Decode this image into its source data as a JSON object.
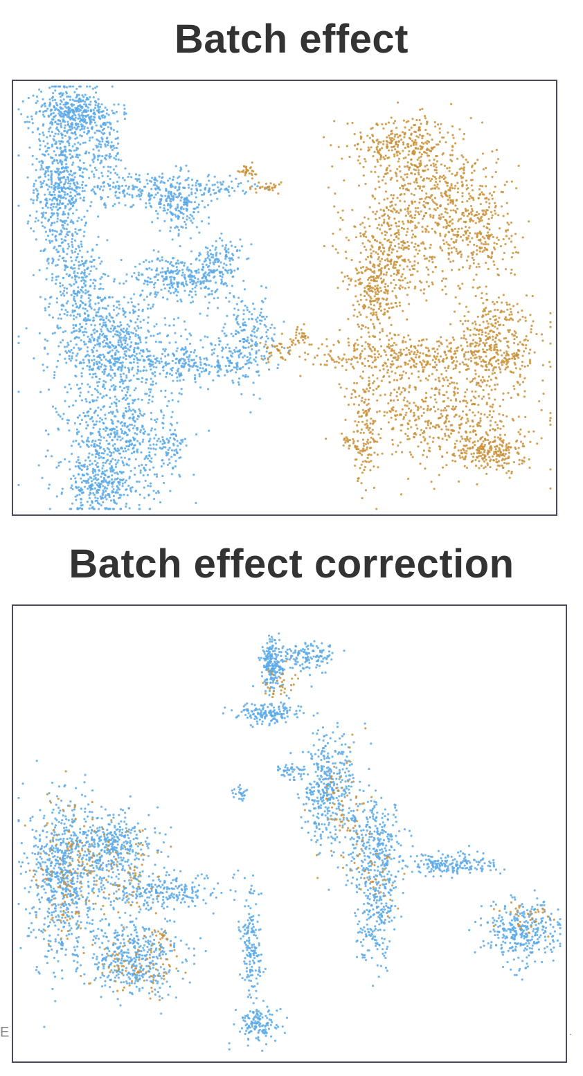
{
  "colors": {
    "batch_a": "#5aa9e6",
    "batch_b": "#c9923a",
    "frame": "#4a4a5e",
    "title": "#333333"
  },
  "edge_marks": {
    "left": "E",
    "right": "."
  },
  "chart_data": [
    {
      "type": "scatter",
      "title": "Batch effect",
      "xlabel": "",
      "ylabel": "",
      "grid": false,
      "xlim": [
        0,
        100
      ],
      "ylim": [
        0,
        100
      ],
      "series": [
        {
          "color": "#5aa9e6",
          "clusters": [
            {
              "x": 8,
              "y": 78,
              "sx": 2.5,
              "sy": 12,
              "n": 700
            },
            {
              "x": 11,
              "y": 94,
              "sx": 4,
              "sy": 2.5,
              "n": 280
            },
            {
              "x": 16,
              "y": 86,
              "sx": 2,
              "sy": 4,
              "n": 120
            },
            {
              "x": 22,
              "y": 76,
              "sx": 7,
              "sy": 2,
              "n": 220
            },
            {
              "x": 30,
              "y": 72,
              "sx": 2.5,
              "sy": 3.5,
              "n": 180
            },
            {
              "x": 38,
              "y": 76,
              "sx": 3,
              "sy": 1.2,
              "n": 60
            },
            {
              "x": 30,
              "y": 55,
              "sx": 4,
              "sy": 2.5,
              "n": 260
            },
            {
              "x": 38,
              "y": 58,
              "sx": 2,
              "sy": 4,
              "n": 130
            },
            {
              "x": 12,
              "y": 52,
              "sx": 3,
              "sy": 6,
              "n": 260
            },
            {
              "x": 18,
              "y": 38,
              "sx": 6,
              "sy": 6,
              "n": 620
            },
            {
              "x": 32,
              "y": 34,
              "sx": 6,
              "sy": 2,
              "n": 220
            },
            {
              "x": 43,
              "y": 40,
              "sx": 3,
              "sy": 5,
              "n": 220
            },
            {
              "x": 19,
              "y": 16,
              "sx": 5.5,
              "sy": 7,
              "n": 600
            },
            {
              "x": 15,
              "y": 5,
              "sx": 3,
              "sy": 3,
              "n": 240
            },
            {
              "x": 29,
              "y": 15,
              "sx": 1.5,
              "sy": 2,
              "n": 40
            }
          ]
        },
        {
          "color": "#c9923a",
          "clusters": [
            {
              "x": 72,
              "y": 87,
              "sx": 5,
              "sy": 3,
              "n": 250
            },
            {
              "x": 77,
              "y": 76,
              "sx": 6,
              "sy": 6,
              "n": 380
            },
            {
              "x": 86,
              "y": 66,
              "sx": 4,
              "sy": 7,
              "n": 300
            },
            {
              "x": 70,
              "y": 62,
              "sx": 4.5,
              "sy": 6,
              "n": 360
            },
            {
              "x": 67,
              "y": 50,
              "sx": 2.5,
              "sy": 5,
              "n": 200
            },
            {
              "x": 75,
              "y": 36,
              "sx": 10,
              "sy": 2.5,
              "n": 380
            },
            {
              "x": 90,
              "y": 40,
              "sx": 4,
              "sy": 6,
              "n": 320
            },
            {
              "x": 79,
              "y": 22,
              "sx": 8,
              "sy": 6,
              "n": 520
            },
            {
              "x": 89,
              "y": 14,
              "sx": 3,
              "sy": 2.5,
              "n": 220
            },
            {
              "x": 65,
              "y": 20,
              "sx": 1.2,
              "sy": 8,
              "n": 120
            },
            {
              "x": 43,
              "y": 80,
              "sx": 0.8,
              "sy": 0.8,
              "n": 30
            },
            {
              "x": 47,
              "y": 76,
              "sx": 1.5,
              "sy": 0.6,
              "n": 30
            },
            {
              "x": 53,
              "y": 41,
              "sx": 0.8,
              "sy": 1,
              "n": 30
            },
            {
              "x": 49,
              "y": 38,
              "sx": 2,
              "sy": 1.5,
              "n": 40
            },
            {
              "x": 62,
              "y": 16,
              "sx": 0.8,
              "sy": 0.8,
              "n": 15
            }
          ]
        }
      ]
    },
    {
      "type": "scatter",
      "title": "Batch effect correction",
      "xlabel": "",
      "ylabel": "",
      "grid": false,
      "xlim": [
        0,
        100
      ],
      "ylim": [
        0,
        100
      ],
      "series": [
        {
          "color": "#5aa9e6",
          "clusters": [
            {
              "x": 47,
              "y": 88,
              "sx": 1.2,
              "sy": 3,
              "n": 200
            },
            {
              "x": 54,
              "y": 90,
              "sx": 2.5,
              "sy": 1.5,
              "n": 120
            },
            {
              "x": 46,
              "y": 77,
              "sx": 3,
              "sy": 1.2,
              "n": 150
            },
            {
              "x": 41,
              "y": 59,
              "sx": 0.8,
              "sy": 1.2,
              "n": 25
            },
            {
              "x": 50,
              "y": 64,
              "sx": 1.5,
              "sy": 0.8,
              "n": 40
            },
            {
              "x": 57,
              "y": 60,
              "sx": 2.5,
              "sy": 6,
              "n": 380
            },
            {
              "x": 66,
              "y": 47,
              "sx": 3,
              "sy": 5,
              "n": 280
            },
            {
              "x": 66,
              "y": 34,
              "sx": 1.8,
              "sy": 6,
              "n": 240
            },
            {
              "x": 80,
              "y": 43,
              "sx": 4,
              "sy": 1.3,
              "n": 180
            },
            {
              "x": 93,
              "y": 28,
              "sx": 3.5,
              "sy": 3.5,
              "n": 320
            },
            {
              "x": 8,
              "y": 40,
              "sx": 3,
              "sy": 9,
              "n": 620
            },
            {
              "x": 17,
              "y": 47,
              "sx": 4,
              "sy": 4,
              "n": 400
            },
            {
              "x": 26,
              "y": 37,
              "sx": 6,
              "sy": 2,
              "n": 260
            },
            {
              "x": 21,
              "y": 22,
              "sx": 4.5,
              "sy": 4,
              "n": 420
            },
            {
              "x": 43,
              "y": 24,
              "sx": 1,
              "sy": 6,
              "n": 160
            },
            {
              "x": 44,
              "y": 7,
              "sx": 2,
              "sy": 2,
              "n": 130
            }
          ]
        },
        {
          "color": "#c9923a",
          "clusters": [
            {
              "x": 48,
              "y": 84,
              "sx": 1.5,
              "sy": 2,
              "n": 30
            },
            {
              "x": 60,
              "y": 55,
              "sx": 2.5,
              "sy": 7,
              "n": 70
            },
            {
              "x": 9,
              "y": 42,
              "sx": 3,
              "sy": 8,
              "n": 120
            },
            {
              "x": 19,
              "y": 42,
              "sx": 4,
              "sy": 5,
              "n": 80
            },
            {
              "x": 26,
              "y": 27,
              "sx": 1.2,
              "sy": 1,
              "n": 20
            },
            {
              "x": 22,
              "y": 20,
              "sx": 4,
              "sy": 3,
              "n": 80
            },
            {
              "x": 94,
              "y": 31,
              "sx": 2.5,
              "sy": 2,
              "n": 35
            },
            {
              "x": 67,
              "y": 40,
              "sx": 2,
              "sy": 4,
              "n": 30
            }
          ]
        }
      ]
    }
  ]
}
